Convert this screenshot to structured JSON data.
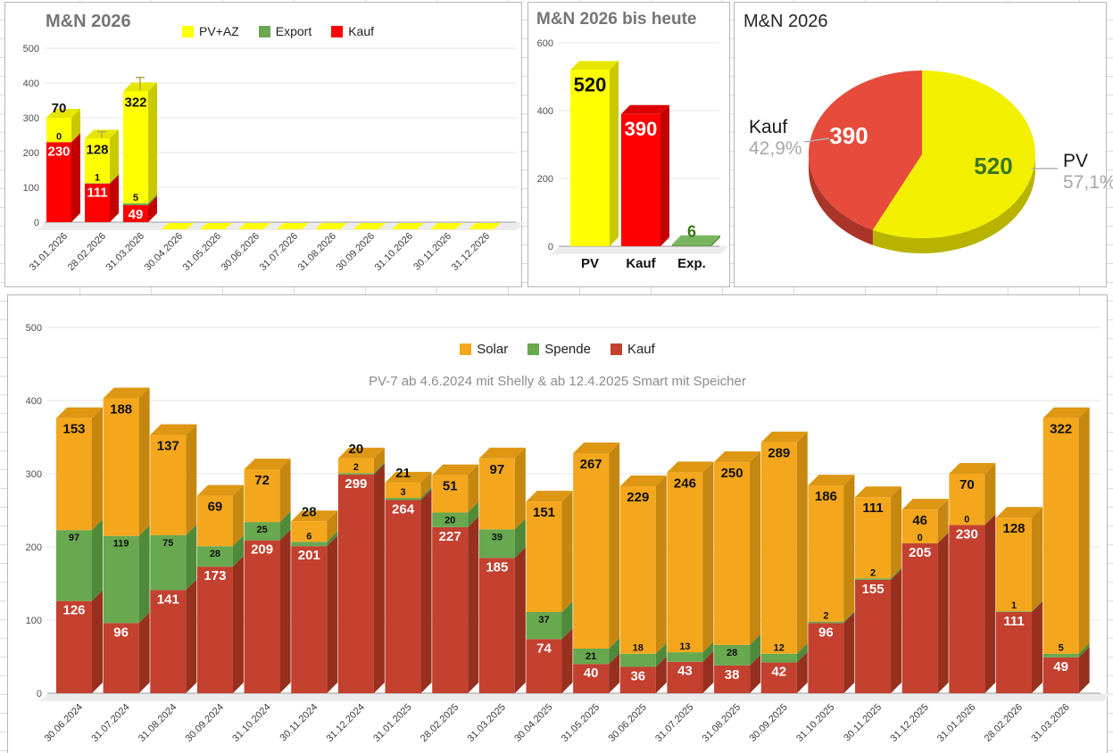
{
  "chart_data": [
    {
      "id": "mn-2026-monthly",
      "type": "bar",
      "stacked": true,
      "title": "M&N 2026",
      "legend": [
        {
          "label": "PV+AZ",
          "color": "#ffff00"
        },
        {
          "label": "Export",
          "color": "#6aa84f"
        },
        {
          "label": "Kauf",
          "color": "#ff0000"
        }
      ],
      "categories": [
        "31.01.2026",
        "28.02.2026",
        "31.03.2026",
        "30.04.2026",
        "31.05.2026",
        "30.06.2026",
        "31.07.2026",
        "31.08.2026",
        "30.09.2026",
        "31.10.2026",
        "30.11.2026",
        "31.12.2026"
      ],
      "series": [
        {
          "name": "Kauf",
          "color": "#ff0000",
          "side": "#c30000",
          "top": "#de0000",
          "label_class": "val-kauf",
          "values": [
            230,
            111,
            49,
            0,
            0,
            0,
            0,
            0,
            0,
            0,
            0,
            0
          ]
        },
        {
          "name": "Export",
          "color": "#6aa84f",
          "side": "#528a3c",
          "top": "#7ab55f",
          "label_class": "val-sub",
          "values": [
            0,
            1,
            5,
            0,
            0,
            0,
            0,
            0,
            0,
            0,
            0,
            0
          ]
        },
        {
          "name": "PV+AZ",
          "color": "#ffff00",
          "side": "#c9c900",
          "top": "#e6e600",
          "label_class": "val-main",
          "values": [
            70,
            128,
            322,
            0,
            0,
            0,
            0,
            0,
            0,
            0,
            0,
            0
          ]
        }
      ],
      "error_up_units": [
        0,
        20,
        40,
        0,
        0,
        0,
        0,
        0,
        0,
        0,
        0,
        0
      ],
      "ylim": [
        0,
        500
      ],
      "yticks": [
        0,
        100,
        200,
        300,
        400,
        500
      ],
      "grid": true,
      "legend_position": "top"
    },
    {
      "id": "mn-2026-ytd",
      "type": "bar",
      "stacked": false,
      "title": "M&N 2026 bis heute",
      "categories": [
        "PV",
        "Kauf",
        "Exp."
      ],
      "values": [
        520,
        390,
        6
      ],
      "colors": [
        "#ffff00",
        "#ff0000",
        "#6aa84f"
      ],
      "side_colors": [
        "#c9c900",
        "#c30000",
        "#528a3c"
      ],
      "top_colors": [
        "#e6e600",
        "#de0000",
        "#7ab55f"
      ],
      "value_label_colors": [
        "#101010",
        "#ffffff",
        "#38761d"
      ],
      "ylim": [
        0,
        600
      ],
      "yticks": [
        0,
        200,
        400,
        600
      ],
      "grid": true
    },
    {
      "id": "mn-2026-pie",
      "type": "pie",
      "title": "M&N 2026",
      "slices": [
        {
          "label": "PV",
          "value": 520,
          "pct_label": "57,1%",
          "color": "#f3ef00",
          "side": "#b7b300",
          "value_label_color": "#38761d"
        },
        {
          "label": "Kauf",
          "value": 390,
          "pct_label": "42,9%",
          "color": "#e64b3b",
          "side": "#aa3427",
          "value_label_color": "#ffffff"
        }
      ],
      "legend_position": "none"
    },
    {
      "id": "pv7-history",
      "type": "bar",
      "stacked": true,
      "title": "PV-7 ab 4.6.2024 mit Shelly & ab 12.4.2025 Smart mit Speicher",
      "legend": [
        {
          "label": "Solar",
          "color": "#f4a71d"
        },
        {
          "label": "Spende",
          "color": "#68a84f"
        },
        {
          "label": "Kauf",
          "color": "#c4402f"
        }
      ],
      "categories": [
        "30.06.2024",
        "31.07.2024",
        "31.08.2024",
        "30.09.2024",
        "31.10.2024",
        "30.11.2024",
        "31.12.2024",
        "31.01.2025",
        "28.02.2025",
        "31.03.2025",
        "30.04.2025",
        "31.05.2025",
        "30.06.2025",
        "31.07.2025",
        "31.08.2025",
        "30.09.2025",
        "31.10.2025",
        "30.11.2025",
        "31.12.2025",
        "31.01.2026",
        "28.02.2026",
        "31.03.2026"
      ],
      "series": [
        {
          "name": "Kauf",
          "color": "#c4402f",
          "side": "#97301f",
          "top": "#ac3525",
          "label_class": "val-kauf",
          "values": [
            126,
            96,
            141,
            173,
            209,
            201,
            299,
            264,
            227,
            185,
            74,
            40,
            36,
            43,
            38,
            42,
            96,
            155,
            205,
            230,
            111,
            49
          ]
        },
        {
          "name": "Spende",
          "color": "#68a84f",
          "side": "#4f8a3a",
          "top": "#5d9a45",
          "label_class": "val-sub",
          "values": [
            97,
            119,
            75,
            28,
            25,
            6,
            2,
            3,
            20,
            39,
            37,
            21,
            18,
            13,
            28,
            12,
            2,
            2,
            0,
            0,
            1,
            5
          ]
        },
        {
          "name": "Solar",
          "color": "#f4a71d",
          "side": "#c5870f",
          "top": "#dd9713",
          "label_class": "val-main",
          "values": [
            153,
            188,
            137,
            69,
            72,
            28,
            20,
            21,
            51,
            97,
            151,
            267,
            229,
            246,
            250,
            289,
            186,
            111,
            46,
            70,
            128,
            322
          ]
        }
      ],
      "ylim": [
        0,
        500
      ],
      "yticks": [
        0,
        100,
        200,
        300,
        400,
        500
      ],
      "grid": true,
      "legend_position": "top"
    }
  ]
}
